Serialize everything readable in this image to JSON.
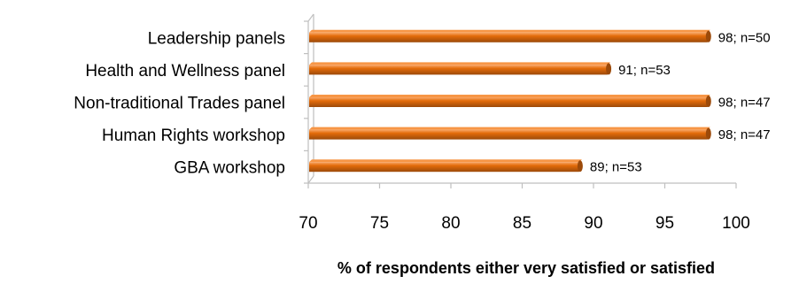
{
  "chart_data": {
    "type": "bar",
    "orientation": "horizontal",
    "categories": [
      "Leadership panels",
      "Health and Wellness panel",
      "Non-traditional Trades panel",
      "Human Rights workshop",
      "GBA workshop"
    ],
    "values": [
      98,
      91,
      98,
      98,
      89
    ],
    "data_labels": [
      "98; n=50",
      "91; n=53",
      "98; n=47",
      "98; n=47",
      "89; n=53"
    ],
    "xlabel": "% of respondents either very satisfied or satisfied",
    "xlim": [
      70,
      100
    ],
    "xticks": [
      70,
      75,
      80,
      85,
      90,
      95,
      100
    ],
    "legend": "none",
    "grid": false,
    "style": "3d",
    "colors": {
      "bar": "#e46c0a",
      "bar_light": "#f79646",
      "bar_dark": "#9c4a0a",
      "axis": "#bfbfbf"
    }
  }
}
